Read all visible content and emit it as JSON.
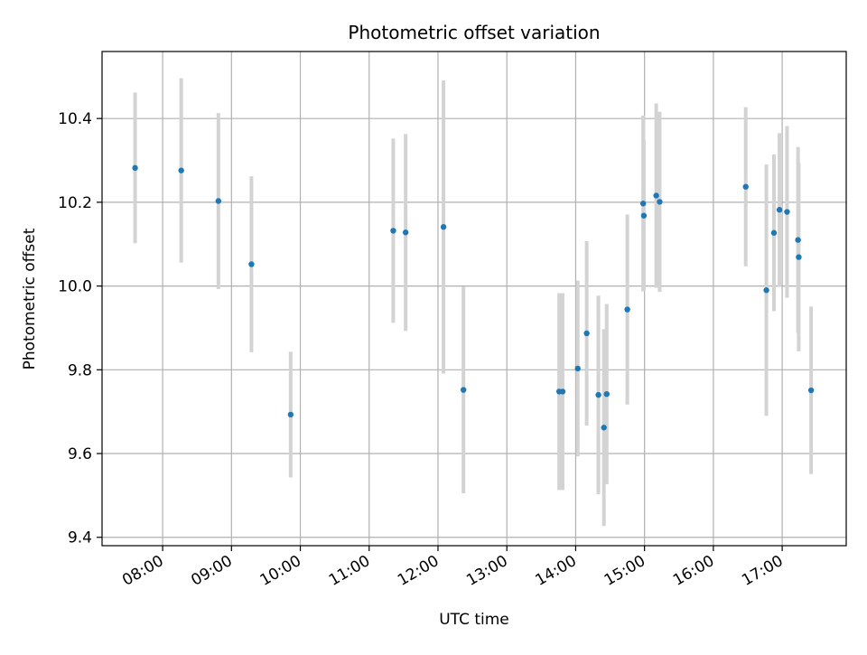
{
  "chart_data": {
    "type": "scatter",
    "title": "Photometric offset variation",
    "xlabel": "UTC time",
    "ylabel": "Photometric offset",
    "x_unit": "hours UTC",
    "xlim": [
      7.12,
      17.93
    ],
    "ylim": [
      9.38,
      10.56
    ],
    "grid": true,
    "legend": "none",
    "xticks": [
      {
        "value": 8,
        "label": "08:00"
      },
      {
        "value": 9,
        "label": "09:00"
      },
      {
        "value": 10,
        "label": "10:00"
      },
      {
        "value": 11,
        "label": "11:00"
      },
      {
        "value": 12,
        "label": "12:00"
      },
      {
        "value": 13,
        "label": "13:00"
      },
      {
        "value": 14,
        "label": "14:00"
      },
      {
        "value": 15,
        "label": "15:00"
      },
      {
        "value": 16,
        "label": "16:00"
      },
      {
        "value": 17,
        "label": "17:00"
      }
    ],
    "yticks": [
      {
        "value": 9.4,
        "label": "9.4"
      },
      {
        "value": 9.6,
        "label": "9.6"
      },
      {
        "value": 9.8,
        "label": "9.8"
      },
      {
        "value": 10.0,
        "label": "10.0"
      },
      {
        "value": 10.2,
        "label": "10.2"
      },
      {
        "value": 10.4,
        "label": "10.4"
      }
    ],
    "colors": {
      "marker": "#1f77b4",
      "errorbar": "#d3d3d3",
      "grid": "#b0b0b0",
      "axes": "#000000"
    },
    "points": [
      {
        "x": 7.6,
        "y": 10.282,
        "yerr": 0.18
      },
      {
        "x": 8.27,
        "y": 10.276,
        "yerr": 0.22
      },
      {
        "x": 8.81,
        "y": 10.203,
        "yerr": 0.21
      },
      {
        "x": 9.29,
        "y": 10.052,
        "yerr": 0.21
      },
      {
        "x": 9.86,
        "y": 9.693,
        "yerr": 0.15
      },
      {
        "x": 11.35,
        "y": 10.132,
        "yerr": 0.22
      },
      {
        "x": 11.53,
        "y": 10.128,
        "yerr": 0.235
      },
      {
        "x": 12.08,
        "y": 10.141,
        "yerr": 0.35
      },
      {
        "x": 12.37,
        "y": 9.752,
        "yerr": 0.247
      },
      {
        "x": 13.76,
        "y": 9.748,
        "yerr": 0.235
      },
      {
        "x": 13.81,
        "y": 9.748,
        "yerr": 0.235
      },
      {
        "x": 14.03,
        "y": 9.803,
        "yerr": 0.21
      },
      {
        "x": 14.16,
        "y": 9.887,
        "yerr": 0.22
      },
      {
        "x": 14.33,
        "y": 9.74,
        "yerr": 0.237
      },
      {
        "x": 14.41,
        "y": 9.662,
        "yerr": 0.235
      },
      {
        "x": 14.45,
        "y": 9.742,
        "yerr": 0.215
      },
      {
        "x": 14.75,
        "y": 9.944,
        "yerr": 0.227
      },
      {
        "x": 14.98,
        "y": 10.197,
        "yerr": 0.21
      },
      {
        "x": 14.99,
        "y": 10.168,
        "yerr": 0.18
      },
      {
        "x": 15.17,
        "y": 10.216,
        "yerr": 0.22
      },
      {
        "x": 15.22,
        "y": 10.201,
        "yerr": 0.215
      },
      {
        "x": 16.47,
        "y": 10.237,
        "yerr": 0.19
      },
      {
        "x": 16.77,
        "y": 9.99,
        "yerr": 0.3
      },
      {
        "x": 16.88,
        "y": 10.127,
        "yerr": 0.187
      },
      {
        "x": 16.96,
        "y": 10.182,
        "yerr": 0.183
      },
      {
        "x": 17.07,
        "y": 10.177,
        "yerr": 0.205
      },
      {
        "x": 17.23,
        "y": 10.11,
        "yerr": 0.222
      },
      {
        "x": 17.24,
        "y": 10.069,
        "yerr": 0.225
      },
      {
        "x": 17.42,
        "y": 9.751,
        "yerr": 0.2
      }
    ]
  }
}
